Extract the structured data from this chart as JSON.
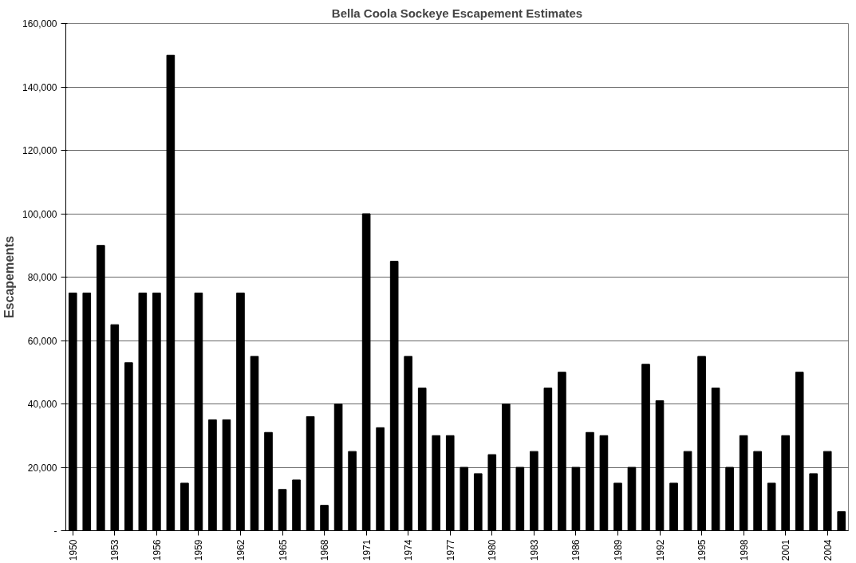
{
  "chart_data": {
    "type": "bar",
    "title": "Bella Coola Sockeye Escapement Estimates",
    "ylabel": "Escapements",
    "categories": [
      "1950",
      null,
      null,
      "1953",
      null,
      null,
      "1956",
      null,
      null,
      "1959",
      null,
      null,
      "1962",
      null,
      null,
      "1965",
      null,
      null,
      "1968",
      null,
      null,
      "1971",
      null,
      null,
      "1974",
      null,
      null,
      "1977",
      null,
      null,
      "1980",
      null,
      null,
      "1983",
      null,
      null,
      "1986",
      null,
      null,
      "1989",
      null,
      null,
      "1992",
      null,
      null,
      "1995",
      null,
      null,
      "1998",
      null,
      null,
      "2001",
      null,
      null,
      "2004",
      null
    ],
    "values": [
      75000,
      75000,
      90000,
      65000,
      53000,
      75000,
      75000,
      150000,
      15000,
      75000,
      35000,
      35000,
      75000,
      55000,
      31000,
      13000,
      16000,
      36000,
      8000,
      40000,
      25000,
      100000,
      32500,
      85000,
      55000,
      45000,
      30000,
      30000,
      20000,
      18000,
      24000,
      40000,
      20000,
      25000,
      45000,
      50000,
      20000,
      31000,
      30000,
      15000,
      20000,
      52500,
      41000,
      15000,
      25000,
      55000,
      45000,
      20000,
      30000,
      25000,
      15000,
      30000,
      50000,
      18000,
      25000,
      6000
    ],
    "color": "#000000",
    "ylim": [
      0,
      160000
    ],
    "yticks": [
      {
        "value": 0,
        "label": "-"
      },
      {
        "value": 20000,
        "label": "20,000"
      },
      {
        "value": 40000,
        "label": "40,000"
      },
      {
        "value": 60000,
        "label": "60,000"
      },
      {
        "value": 80000,
        "label": "80,000"
      },
      {
        "value": 100000,
        "label": "100,000"
      },
      {
        "value": 120000,
        "label": "120,000"
      },
      {
        "value": 140000,
        "label": "140,000"
      },
      {
        "value": 160000,
        "label": "160,000"
      }
    ],
    "grid": "y"
  }
}
